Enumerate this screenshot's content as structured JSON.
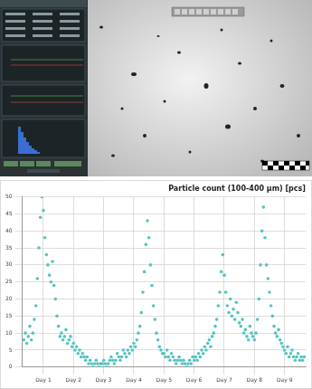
{
  "chart_data": {
    "type": "scatter",
    "title": "Particle count (100-400 µm) [pcs]",
    "x": [
      0.35,
      0.4,
      0.45,
      0.5,
      0.55,
      0.6,
      0.65,
      0.7,
      0.75,
      0.8,
      0.85,
      0.9,
      0.95,
      1,
      1.05,
      1.1,
      1.15,
      1.2,
      1.25,
      1.3,
      1.35,
      1.4,
      1.45,
      1.5,
      1.55,
      1.6,
      1.65,
      1.7,
      1.75,
      1.8,
      1.85,
      1.9,
      1.95,
      2,
      2.05,
      2.1,
      2.15,
      2.2,
      2.25,
      2.3,
      2.35,
      2.4,
      2.45,
      2.5,
      2.55,
      2.6,
      2.65,
      2.7,
      2.75,
      2.8,
      2.85,
      2.9,
      2.95,
      3,
      3.05,
      3.1,
      3.15,
      3.2,
      3.25,
      3.3,
      3.35,
      3.4,
      3.45,
      3.5,
      3.55,
      3.6,
      3.65,
      3.7,
      3.75,
      3.8,
      3.85,
      3.9,
      3.95,
      4,
      4.05,
      4.1,
      4.15,
      4.2,
      4.25,
      4.3,
      4.35,
      4.4,
      4.45,
      4.5,
      4.55,
      4.6,
      4.65,
      4.7,
      4.75,
      4.8,
      4.85,
      4.9,
      4.95,
      5,
      5.05,
      5.1,
      5.15,
      5.2,
      5.25,
      5.3,
      5.35,
      5.4,
      5.45,
      5.5,
      5.55,
      5.6,
      5.65,
      5.7,
      5.75,
      5.8,
      5.85,
      5.9,
      5.95,
      6,
      6.05,
      6.1,
      6.15,
      6.2,
      6.25,
      6.3,
      6.35,
      6.4,
      6.45,
      6.5,
      6.55,
      6.6,
      6.65,
      6.7,
      6.75,
      6.8,
      6.85,
      6.9,
      6.95,
      7,
      7.05,
      7.1,
      7.15,
      7.2,
      7.25,
      7.3,
      7.35,
      7.4,
      7.45,
      7.5,
      7.55,
      7.6,
      7.65,
      7.7,
      7.75,
      7.8,
      7.85,
      7.9,
      7.95,
      8,
      8.05,
      8.1,
      8.15,
      8.2,
      8.25,
      8.3,
      8.35,
      8.4,
      8.45,
      8.5,
      8.55,
      8.6,
      8.65,
      8.7,
      8.75,
      8.8,
      8.85,
      8.9,
      8.95,
      9,
      9.05,
      9.1,
      9.15,
      9.2,
      9.25,
      9.3,
      9.35,
      9.4,
      9.45,
      9.5,
      9.55,
      9.6,
      9.65
    ],
    "values": [
      8,
      10,
      7,
      9,
      12,
      8,
      10,
      14,
      18,
      26,
      35,
      44,
      50,
      46,
      38,
      33,
      30,
      27,
      25,
      31,
      24,
      20,
      15,
      12,
      9,
      10,
      8,
      9,
      11,
      7,
      8,
      9,
      6,
      7,
      5,
      6,
      4,
      5,
      3,
      4,
      3,
      2,
      3,
      1,
      2,
      1,
      0,
      1,
      2,
      1,
      0,
      1,
      1,
      2,
      1,
      0,
      1,
      2,
      3,
      2,
      1,
      2,
      4,
      3,
      2,
      3,
      5,
      4,
      3,
      5,
      4,
      6,
      5,
      7,
      6,
      8,
      10,
      12,
      16,
      22,
      28,
      36,
      43,
      38,
      30,
      24,
      18,
      14,
      10,
      8,
      6,
      5,
      4,
      4,
      3,
      5,
      3,
      2,
      4,
      3,
      2,
      1,
      2,
      3,
      2,
      1,
      2,
      1,
      0,
      1,
      2,
      1,
      3,
      2,
      3,
      2,
      4,
      3,
      5,
      4,
      6,
      5,
      7,
      8,
      6,
      9,
      10,
      12,
      14,
      18,
      22,
      28,
      33,
      27,
      22,
      18,
      16,
      20,
      15,
      17,
      14,
      19,
      16,
      13,
      12,
      14,
      10,
      11,
      9,
      8,
      12,
      10,
      9,
      8,
      10,
      14,
      20,
      30,
      40,
      47,
      38,
      30,
      26,
      22,
      18,
      15,
      12,
      10,
      9,
      11,
      8,
      7,
      6,
      5,
      4,
      6,
      3,
      4,
      5,
      3,
      2,
      3,
      4,
      2,
      3,
      2,
      3
    ],
    "color": "#55c4c1",
    "marker": "circle",
    "xlim": [
      0.3,
      9.7
    ],
    "xticks": [
      {
        "value": 1,
        "label": "Day 1"
      },
      {
        "value": 2,
        "label": "Day 2"
      },
      {
        "value": 3,
        "label": "Day 3"
      },
      {
        "value": 4,
        "label": "Day 4"
      },
      {
        "value": 5,
        "label": "Day 5"
      },
      {
        "value": 6,
        "label": "Day 6"
      },
      {
        "value": 7,
        "label": "Day 7"
      },
      {
        "value": 8,
        "label": "Day 8"
      },
      {
        "value": 9,
        "label": "Day 9"
      }
    ],
    "ylim": [
      0,
      50
    ],
    "yticks": [
      0,
      5,
      10,
      15,
      20,
      25,
      30,
      35,
      40,
      45,
      50
    ],
    "grid": true
  }
}
